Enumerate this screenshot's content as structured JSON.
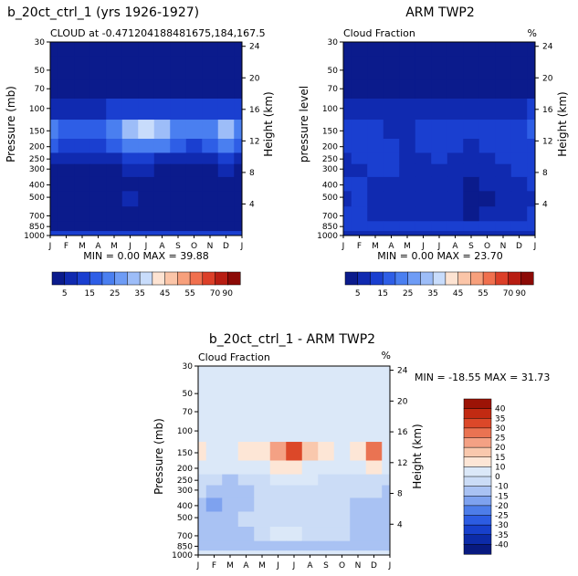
{
  "months": [
    "J",
    "F",
    "M",
    "A",
    "M",
    "J",
    "J",
    "A",
    "S",
    "O",
    "N",
    "D",
    "J"
  ],
  "pressure_axis": {
    "ticks": [
      "30",
      "50",
      "70",
      "100",
      "150",
      "200",
      "250",
      "300",
      "400",
      "500",
      "700",
      "850",
      "1000"
    ],
    "values": [
      30,
      50,
      70,
      100,
      150,
      200,
      250,
      300,
      400,
      500,
      700,
      850,
      1000
    ]
  },
  "height_axis": {
    "label": "Height (km)",
    "ticks": [
      "4",
      "8",
      "12",
      "16",
      "20",
      "24"
    ],
    "values": [
      4,
      8,
      12,
      16,
      20,
      24
    ]
  },
  "seq_colors": [
    "#0b1b8c",
    "#102ab0",
    "#1a3fd0",
    "#2e5ee6",
    "#4a7ff0",
    "#6e9cf5",
    "#9dbdf8",
    "#c8dcfb",
    "#fde3d2",
    "#fbc5a8",
    "#f7a07c",
    "#f0704e",
    "#dc3f28",
    "#b81d12",
    "#8c0a06"
  ],
  "div_colors": [
    "#081a80",
    "#0c2ba8",
    "#1740cc",
    "#2c5ce2",
    "#4d7de9",
    "#7ea2ef",
    "#a9c2f3",
    "#cbdcf6",
    "#dbe8f8",
    "#fde6d6",
    "#f9c8ad",
    "#f4a184",
    "#ea7352",
    "#dc4829",
    "#c22a12",
    "#9c1306"
  ],
  "charts": [
    {
      "id": "model",
      "title": "b_20ct_ctrl_1 (yrs 1926-1927)",
      "subtitle_left": "CLOUD at -0.471204188481675,184,167.5",
      "subtitle_right": "",
      "ylabel": "Pressure (mb)",
      "minmax": "MIN =   0.00 MAX =  39.88"
    },
    {
      "id": "arm",
      "title": "ARM TWP2",
      "subtitle_left": "Cloud Fraction",
      "subtitle_right": "%",
      "ylabel": "pressure level",
      "minmax": "MIN =   0.00 MAX =  23.70"
    },
    {
      "id": "diff",
      "title": "b_20ct_ctrl_1 - ARM TWP2",
      "subtitle_left": "Cloud Fraction",
      "subtitle_right": "%",
      "ylabel": "Pressure (mb)",
      "minmax": "MIN = -18.55 MAX =  31.73"
    }
  ],
  "colorbar_seq": {
    "labels": [
      "5",
      "15",
      "25",
      "35",
      "45",
      "55",
      "70",
      "90"
    ]
  },
  "colorbar_div": {
    "labels": [
      "40",
      "35",
      "30",
      "25",
      "20",
      "15",
      "10",
      "0",
      "-10",
      "-15",
      "-20",
      "-25",
      "-30",
      "-35",
      "-40"
    ]
  },
  "chart_data": [
    {
      "type": "heatmap",
      "title": "b_20ct_ctrl_1 (yrs 1926-1927)",
      "ylabel": "Pressure (mb)",
      "y2label": "Height (km)",
      "x": [
        "J",
        "F",
        "M",
        "A",
        "M",
        "J",
        "J",
        "A",
        "S",
        "O",
        "N",
        "D",
        "J"
      ],
      "y": [
        30,
        50,
        70,
        100,
        150,
        200,
        250,
        300,
        400,
        500,
        700,
        850,
        1000
      ],
      "min": 0.0,
      "max": 39.88,
      "z": [
        [
          0,
          0,
          0,
          0,
          0,
          0,
          0,
          0,
          0,
          0,
          0,
          0,
          0
        ],
        [
          0,
          0,
          0,
          0,
          0,
          0,
          0,
          0,
          0,
          0,
          0,
          0,
          0
        ],
        [
          2,
          2,
          2,
          2,
          2,
          2,
          2,
          2,
          2,
          2,
          2,
          2,
          2
        ],
        [
          9,
          8,
          8,
          9,
          10,
          13,
          14,
          12,
          10,
          10,
          11,
          13,
          10
        ],
        [
          22,
          18,
          15,
          18,
          24,
          34,
          38,
          30,
          22,
          20,
          24,
          34,
          22
        ],
        [
          15,
          12,
          10,
          12,
          16,
          22,
          24,
          20,
          15,
          14,
          17,
          22,
          15
        ],
        [
          8,
          6,
          5,
          6,
          8,
          11,
          11,
          9,
          7,
          7,
          8,
          10,
          8
        ],
        [
          4,
          3,
          3,
          3,
          4,
          5,
          5,
          4,
          3,
          3,
          4,
          5,
          4
        ],
        [
          1,
          1,
          1,
          1,
          2,
          4,
          3,
          2,
          1,
          1,
          1,
          2,
          1
        ],
        [
          1,
          1,
          1,
          1,
          3,
          5,
          4,
          2,
          1,
          1,
          1,
          1,
          1
        ],
        [
          1,
          1,
          1,
          1,
          2,
          3,
          3,
          2,
          1,
          1,
          1,
          1,
          1
        ],
        [
          2,
          2,
          2,
          2,
          2,
          2,
          2,
          2,
          2,
          2,
          2,
          2,
          2
        ],
        [
          10,
          10,
          10,
          10,
          10,
          10,
          10,
          10,
          10,
          10,
          10,
          10,
          10
        ]
      ]
    },
    {
      "type": "heatmap",
      "title": "ARM TWP2",
      "ylabel": "pressure level",
      "y2label": "Height (km)",
      "x": [
        "J",
        "F",
        "M",
        "A",
        "M",
        "J",
        "J",
        "A",
        "S",
        "O",
        "N",
        "D",
        "J"
      ],
      "y": [
        30,
        50,
        70,
        100,
        150,
        200,
        250,
        300,
        400,
        500,
        700,
        850,
        1000
      ],
      "min": 0.0,
      "max": 23.7,
      "z": [
        [
          0,
          0,
          0,
          0,
          0,
          0,
          0,
          0,
          0,
          0,
          0,
          0,
          0
        ],
        [
          0,
          0,
          0,
          0,
          0,
          0,
          0,
          0,
          0,
          0,
          0,
          0,
          0
        ],
        [
          1,
          1,
          1,
          1,
          1,
          1,
          1,
          1,
          1,
          1,
          1,
          1,
          1
        ],
        [
          7,
          6,
          5,
          5,
          5,
          6,
          6,
          5,
          5,
          6,
          7,
          9,
          12
        ],
        [
          12,
          11,
          10,
          9,
          9,
          11,
          12,
          11,
          10,
          11,
          12,
          14,
          18
        ],
        [
          10,
          11,
          13,
          11,
          9,
          10,
          11,
          10,
          9,
          10,
          11,
          12,
          14
        ],
        [
          9,
          10,
          12,
          11,
          9,
          9,
          10,
          9,
          9,
          9,
          10,
          11,
          12
        ],
        [
          8,
          9,
          11,
          10,
          8,
          8,
          8,
          8,
          8,
          8,
          9,
          10,
          11
        ],
        [
          10,
          14,
          8,
          7,
          7,
          8,
          8,
          7,
          4,
          5,
          8,
          9,
          10
        ],
        [
          9,
          10,
          7,
          6,
          6,
          7,
          7,
          6,
          3,
          4,
          7,
          8,
          9
        ],
        [
          10,
          10,
          8,
          7,
          7,
          8,
          8,
          7,
          4,
          6,
          8,
          9,
          10
        ],
        [
          11,
          11,
          10,
          10,
          10,
          10,
          10,
          10,
          10,
          10,
          10,
          11,
          11
        ],
        [
          9,
          9,
          9,
          9,
          9,
          9,
          9,
          9,
          9,
          9,
          9,
          9,
          9
        ]
      ]
    },
    {
      "type": "heatmap",
      "title": "b_20ct_ctrl_1 - ARM TWP2",
      "ylabel": "Pressure (mb)",
      "y2label": "Height (km)",
      "x": [
        "J",
        "F",
        "M",
        "A",
        "M",
        "J",
        "J",
        "A",
        "S",
        "O",
        "N",
        "D",
        "J"
      ],
      "y": [
        30,
        50,
        70,
        100,
        150,
        200,
        250,
        300,
        400,
        500,
        700,
        850,
        1000
      ],
      "min": -18.55,
      "max": 31.73,
      "z": [
        [
          0,
          0,
          0,
          0,
          0,
          0,
          0,
          0,
          0,
          0,
          0,
          0,
          0
        ],
        [
          0,
          0,
          0,
          0,
          0,
          0,
          0,
          0,
          0,
          0,
          0,
          0,
          0
        ],
        [
          2,
          2,
          2,
          2,
          2,
          3,
          3,
          2,
          2,
          2,
          2,
          2,
          2
        ],
        [
          3,
          3,
          4,
          5,
          5,
          7,
          8,
          7,
          5,
          5,
          5,
          7,
          3
        ],
        [
          10,
          8,
          6,
          12,
          10,
          22,
          30,
          18,
          10,
          8,
          12,
          28,
          6
        ],
        [
          5,
          3,
          0,
          2,
          7,
          10,
          12,
          8,
          5,
          4,
          6,
          10,
          1
        ],
        [
          -2,
          -5,
          -7,
          -4,
          -1,
          1,
          1,
          0,
          -1,
          -2,
          -3,
          -1,
          -4
        ],
        [
          -4,
          -6,
          -8,
          -6,
          -4,
          -3,
          -3,
          -3,
          -4,
          -4,
          -4,
          -4,
          -6
        ],
        [
          -9,
          -13,
          -7,
          -6,
          -5,
          -4,
          -5,
          -5,
          -3,
          -4,
          -7,
          -7,
          -9
        ],
        [
          -8,
          -9,
          -6,
          -5,
          -3,
          -2,
          -3,
          -4,
          -2,
          -3,
          -6,
          -7,
          -8
        ],
        [
          -9,
          -9,
          -7,
          -6,
          -5,
          2,
          5,
          -4,
          -3,
          -5,
          -7,
          -8,
          -9
        ],
        [
          -9,
          -9,
          -8,
          -8,
          -8,
          -8,
          -8,
          -8,
          -8,
          -8,
          -8,
          -9,
          -9
        ],
        [
          1,
          1,
          1,
          1,
          1,
          1,
          1,
          1,
          1,
          1,
          1,
          1,
          1
        ]
      ]
    }
  ]
}
